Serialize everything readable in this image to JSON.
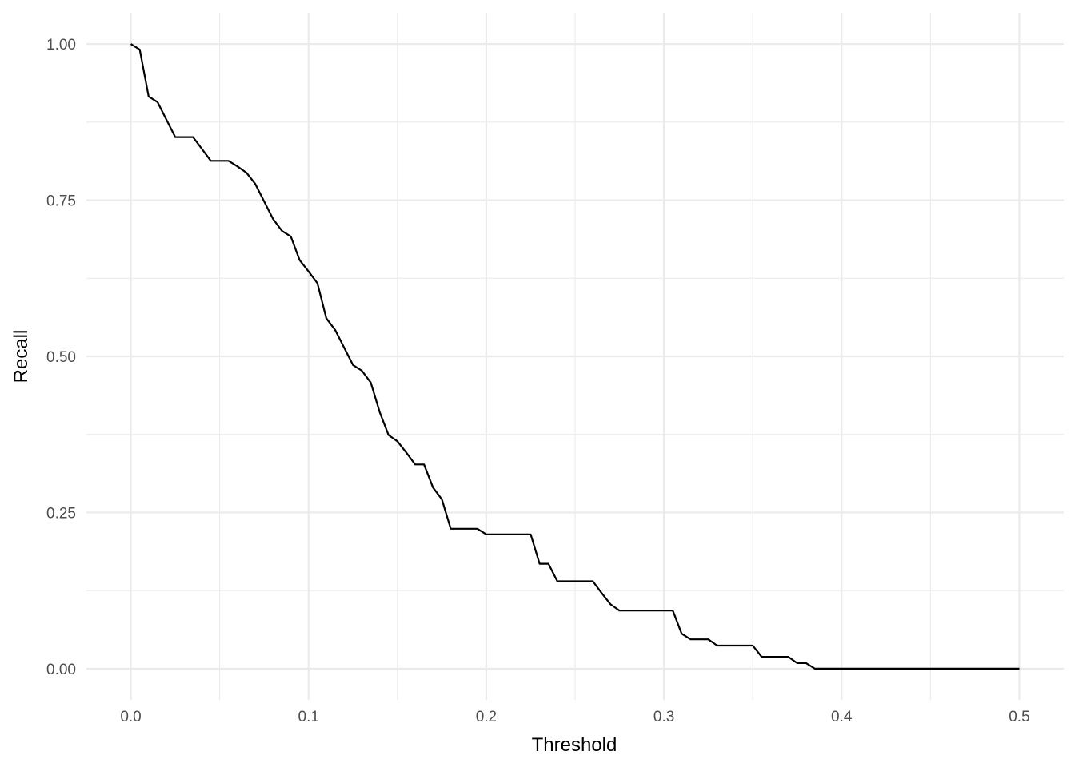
{
  "chart_data": {
    "type": "line",
    "title": "",
    "xlabel": "Threshold",
    "ylabel": "Recall",
    "xlim": [
      -0.025,
      0.525
    ],
    "ylim": [
      -0.05,
      1.05
    ],
    "x_ticks": [
      0.0,
      0.1,
      0.2,
      0.3,
      0.4,
      0.5
    ],
    "x_tick_labels": [
      "0.0",
      "0.1",
      "0.2",
      "0.3",
      "0.4",
      "0.5"
    ],
    "y_ticks": [
      0.0,
      0.25,
      0.5,
      0.75,
      1.0
    ],
    "y_tick_labels": [
      "0.00",
      "0.25",
      "0.50",
      "0.75",
      "1.00"
    ],
    "grid": true,
    "line_color": "#000000",
    "grid_color": "#ebebeb",
    "series": [
      {
        "x": [
          0.0,
          0.005,
          0.01,
          0.015,
          0.02,
          0.025,
          0.03,
          0.035,
          0.04,
          0.045,
          0.05,
          0.055,
          0.06,
          0.065,
          0.07,
          0.075,
          0.08,
          0.085,
          0.09,
          0.095,
          0.1,
          0.105,
          0.11,
          0.115,
          0.12,
          0.125,
          0.13,
          0.135,
          0.14,
          0.145,
          0.15,
          0.155,
          0.16,
          0.165,
          0.17,
          0.175,
          0.18,
          0.185,
          0.19,
          0.195,
          0.2,
          0.205,
          0.21,
          0.215,
          0.22,
          0.225,
          0.23,
          0.235,
          0.24,
          0.245,
          0.25,
          0.255,
          0.26,
          0.265,
          0.27,
          0.275,
          0.28,
          0.285,
          0.29,
          0.295,
          0.3,
          0.305,
          0.31,
          0.315,
          0.32,
          0.325,
          0.33,
          0.335,
          0.34,
          0.345,
          0.35,
          0.355,
          0.36,
          0.365,
          0.37,
          0.375,
          0.38,
          0.385,
          0.39,
          0.4,
          0.45,
          0.5
        ],
        "y": [
          1.0,
          0.991,
          0.916,
          0.907,
          0.879,
          0.851,
          0.851,
          0.851,
          0.832,
          0.813,
          0.813,
          0.813,
          0.804,
          0.794,
          0.776,
          0.748,
          0.72,
          0.701,
          0.692,
          0.654,
          0.636,
          0.617,
          0.561,
          0.542,
          0.514,
          0.486,
          0.477,
          0.458,
          0.411,
          0.374,
          0.364,
          0.346,
          0.327,
          0.327,
          0.29,
          0.271,
          0.224,
          0.224,
          0.224,
          0.224,
          0.215,
          0.215,
          0.215,
          0.215,
          0.215,
          0.215,
          0.168,
          0.168,
          0.14,
          0.14,
          0.14,
          0.14,
          0.14,
          0.121,
          0.103,
          0.093,
          0.093,
          0.093,
          0.093,
          0.093,
          0.093,
          0.093,
          0.056,
          0.047,
          0.047,
          0.047,
          0.037,
          0.037,
          0.037,
          0.037,
          0.037,
          0.019,
          0.019,
          0.019,
          0.019,
          0.009,
          0.009,
          0.0,
          0.0,
          0.0,
          0.0,
          0.0
        ]
      }
    ]
  }
}
